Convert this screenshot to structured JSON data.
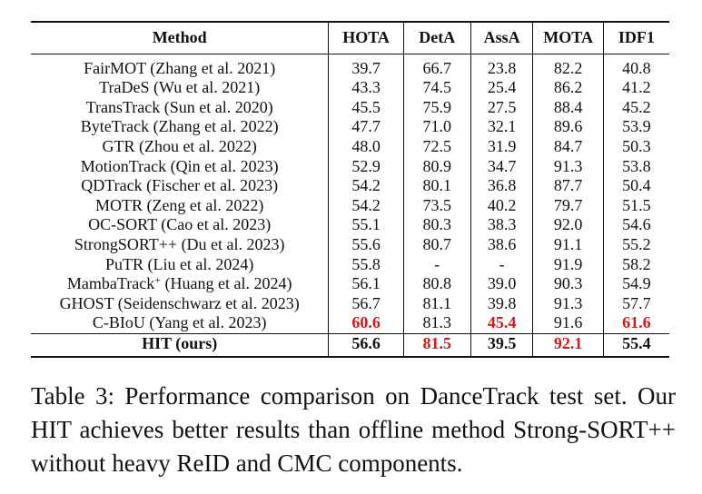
{
  "table": {
    "headers": [
      "Method",
      "HOTA",
      "DetA",
      "AssA",
      "MOTA",
      "IDF1"
    ],
    "rows": [
      {
        "method": "FairMOT (Zhang et al. 2021)",
        "sup": "",
        "method_suffix": "",
        "hota": "39.7",
        "deta": "66.7",
        "assa": "23.8",
        "mota": "82.2",
        "idf1": "40.8",
        "best": []
      },
      {
        "method": "TraDeS (Wu et al. 2021)",
        "sup": "",
        "method_suffix": "",
        "hota": "43.3",
        "deta": "74.5",
        "assa": "25.4",
        "mota": "86.2",
        "idf1": "41.2",
        "best": []
      },
      {
        "method": "TransTrack (Sun et al. 2020)",
        "sup": "",
        "method_suffix": "",
        "hota": "45.5",
        "deta": "75.9",
        "assa": "27.5",
        "mota": "88.4",
        "idf1": "45.2",
        "best": []
      },
      {
        "method": "ByteTrack (Zhang et al. 2022)",
        "sup": "",
        "method_suffix": "",
        "hota": "47.7",
        "deta": "71.0",
        "assa": "32.1",
        "mota": "89.6",
        "idf1": "53.9",
        "best": []
      },
      {
        "method": "GTR (Zhou et al. 2022)",
        "sup": "",
        "method_suffix": "",
        "hota": "48.0",
        "deta": "72.5",
        "assa": "31.9",
        "mota": "84.7",
        "idf1": "50.3",
        "best": []
      },
      {
        "method": "MotionTrack (Qin et al. 2023)",
        "sup": "",
        "method_suffix": "",
        "hota": "52.9",
        "deta": "80.9",
        "assa": "34.7",
        "mota": "91.3",
        "idf1": "53.8",
        "best": []
      },
      {
        "method": "QDTrack (Fischer et al. 2023)",
        "sup": "",
        "method_suffix": "",
        "hota": "54.2",
        "deta": "80.1",
        "assa": "36.8",
        "mota": "87.7",
        "idf1": "50.4",
        "best": []
      },
      {
        "method": "MOTR (Zeng et al. 2022)",
        "sup": "",
        "method_suffix": "",
        "hota": "54.2",
        "deta": "73.5",
        "assa": "40.2",
        "mota": "79.7",
        "idf1": "51.5",
        "best": []
      },
      {
        "method": "OC-SORT (Cao et al. 2023)",
        "sup": "",
        "method_suffix": "",
        "hota": "55.1",
        "deta": "80.3",
        "assa": "38.3",
        "mota": "92.0",
        "idf1": "54.6",
        "best": []
      },
      {
        "method": "StrongSORT++ (Du et al. 2023)",
        "sup": "",
        "method_suffix": "",
        "hota": "55.6",
        "deta": "80.7",
        "assa": "38.6",
        "mota": "91.1",
        "idf1": "55.2",
        "best": []
      },
      {
        "method": "PuTR (Liu et al. 2024)",
        "sup": "",
        "method_suffix": "",
        "hota": "55.8",
        "deta": "-",
        "assa": "-",
        "mota": "91.9",
        "idf1": "58.2",
        "best": []
      },
      {
        "method": "MambaTrack",
        "sup": "+",
        "method_suffix": " (Huang et al. 2024)",
        "hota": "56.1",
        "deta": "80.8",
        "assa": "39.0",
        "mota": "90.3",
        "idf1": "54.9",
        "best": []
      },
      {
        "method": "GHOST (Seidenschwarz et al. 2023)",
        "sup": "",
        "method_suffix": "",
        "hota": "56.7",
        "deta": "81.1",
        "assa": "39.8",
        "mota": "91.3",
        "idf1": "57.7",
        "best": []
      },
      {
        "method": "C-BIoU (Yang et al. 2023)",
        "sup": "",
        "method_suffix": "",
        "hota": "60.6",
        "deta": "81.3",
        "assa": "45.4",
        "mota": "91.6",
        "idf1": "61.6",
        "best": [
          "hota",
          "assa",
          "idf1"
        ]
      }
    ],
    "ours": {
      "method": "HIT (ours)",
      "hota": "56.6",
      "deta": "81.5",
      "assa": "39.5",
      "mota": "92.1",
      "idf1": "55.4",
      "best": [
        "deta",
        "mota"
      ]
    },
    "best_color": "#d21a1a"
  },
  "caption": "Table 3: Performance comparison on DanceTrack test set. Our HIT achieves better results than offline method Strong-SORT++ without heavy ReID and CMC components."
}
